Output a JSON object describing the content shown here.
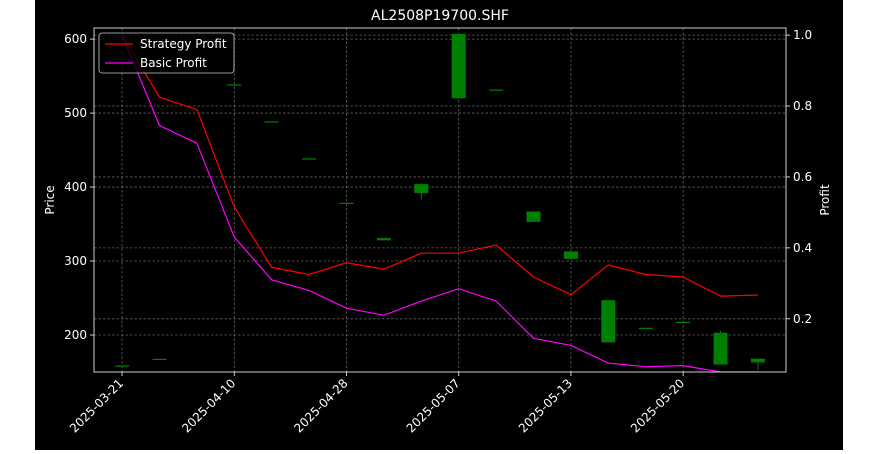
{
  "chart_data": {
    "type": "candlestick+line",
    "title": "AL2508P19700.SHF",
    "ylabel_left": "Price",
    "ylabel_right": "Profit",
    "y_left_range": [
      150,
      615
    ],
    "y_left_ticks": [
      "200",
      "300",
      "400",
      "500",
      "600"
    ],
    "y_right_range": [
      0.05,
      1.02
    ],
    "y_right_ticks": [
      "0.2",
      "0.4",
      "0.6",
      "0.8",
      "1.0"
    ],
    "x_tick_labels": [
      "2025-03-21",
      "2025-04-10",
      "2025-04-28",
      "2025-05-07",
      "2025-05-13",
      "2025-05-20"
    ],
    "x_tick_positions": [
      0,
      6,
      12,
      18,
      24,
      30
    ],
    "x_range": [
      -1.5,
      35.5
    ],
    "grid": true,
    "legend_position": "top-left",
    "candles": [
      {
        "i": 0,
        "open": 158,
        "close": 158,
        "high": 158,
        "low": 158
      },
      {
        "i": 2,
        "open": 167,
        "close": 167,
        "high": 167,
        "low": 167
      },
      {
        "i": 6,
        "open": 538,
        "close": 538,
        "high": 538,
        "low": 538
      },
      {
        "i": 8,
        "open": 488,
        "close": 488,
        "high": 488,
        "low": 488
      },
      {
        "i": 10,
        "open": 438,
        "close": 438,
        "high": 438,
        "low": 438
      },
      {
        "i": 12,
        "open": 378,
        "close": 378,
        "high": 378,
        "low": 378
      },
      {
        "i": 14,
        "open": 328,
        "close": 331,
        "high": 331,
        "low": 328
      },
      {
        "i": 16,
        "open": 392,
        "close": 404,
        "high": 405,
        "low": 383
      },
      {
        "i": 18,
        "open": 520,
        "close": 607,
        "high": 607,
        "low": 520
      },
      {
        "i": 20,
        "open": 531,
        "close": 531,
        "high": 531,
        "low": 531
      },
      {
        "i": 22,
        "open": 353,
        "close": 367,
        "high": 367,
        "low": 353
      },
      {
        "i": 24,
        "open": 303,
        "close": 313,
        "high": 313,
        "low": 303
      },
      {
        "i": 26,
        "open": 190,
        "close": 247,
        "high": 247,
        "low": 190
      },
      {
        "i": 28,
        "open": 209,
        "close": 209,
        "high": 209,
        "low": 209
      },
      {
        "i": 30,
        "open": 217,
        "close": 217,
        "high": 217,
        "low": 217
      },
      {
        "i": 32,
        "open": 160,
        "close": 203,
        "high": 206,
        "low": 160
      },
      {
        "i": 34,
        "open": 163,
        "close": 168,
        "high": 168,
        "low": 153
      }
    ],
    "series": [
      {
        "name": "Strategy Profit",
        "color": "#ff0000",
        "axis": "right",
        "x": [
          0,
          2,
          4,
          6,
          8,
          10,
          12,
          14,
          16,
          18,
          20,
          22,
          24,
          26,
          28,
          30,
          32,
          34
        ],
        "values": [
          1.0,
          0.825,
          0.79,
          0.515,
          0.345,
          0.325,
          0.358,
          0.34,
          0.385,
          0.385,
          0.408,
          0.318,
          0.268,
          0.352,
          0.325,
          0.318,
          0.264,
          0.267
        ]
      },
      {
        "name": "Basic Profit",
        "color": "#ff00ff",
        "axis": "right",
        "x": [
          0,
          2,
          4,
          6,
          8,
          10,
          12,
          14,
          16,
          18,
          20,
          22,
          24,
          26,
          28,
          30,
          32,
          34
        ],
        "values": [
          1.0,
          0.745,
          0.695,
          0.43,
          0.31,
          0.28,
          0.23,
          0.21,
          0.25,
          0.285,
          0.25,
          0.145,
          0.125,
          0.075,
          0.065,
          0.068,
          0.05,
          0.05
        ]
      }
    ],
    "colors": {
      "up": "#008000",
      "down": "#ff0000",
      "background": "#000000",
      "page_margin": "#ffffff"
    }
  }
}
